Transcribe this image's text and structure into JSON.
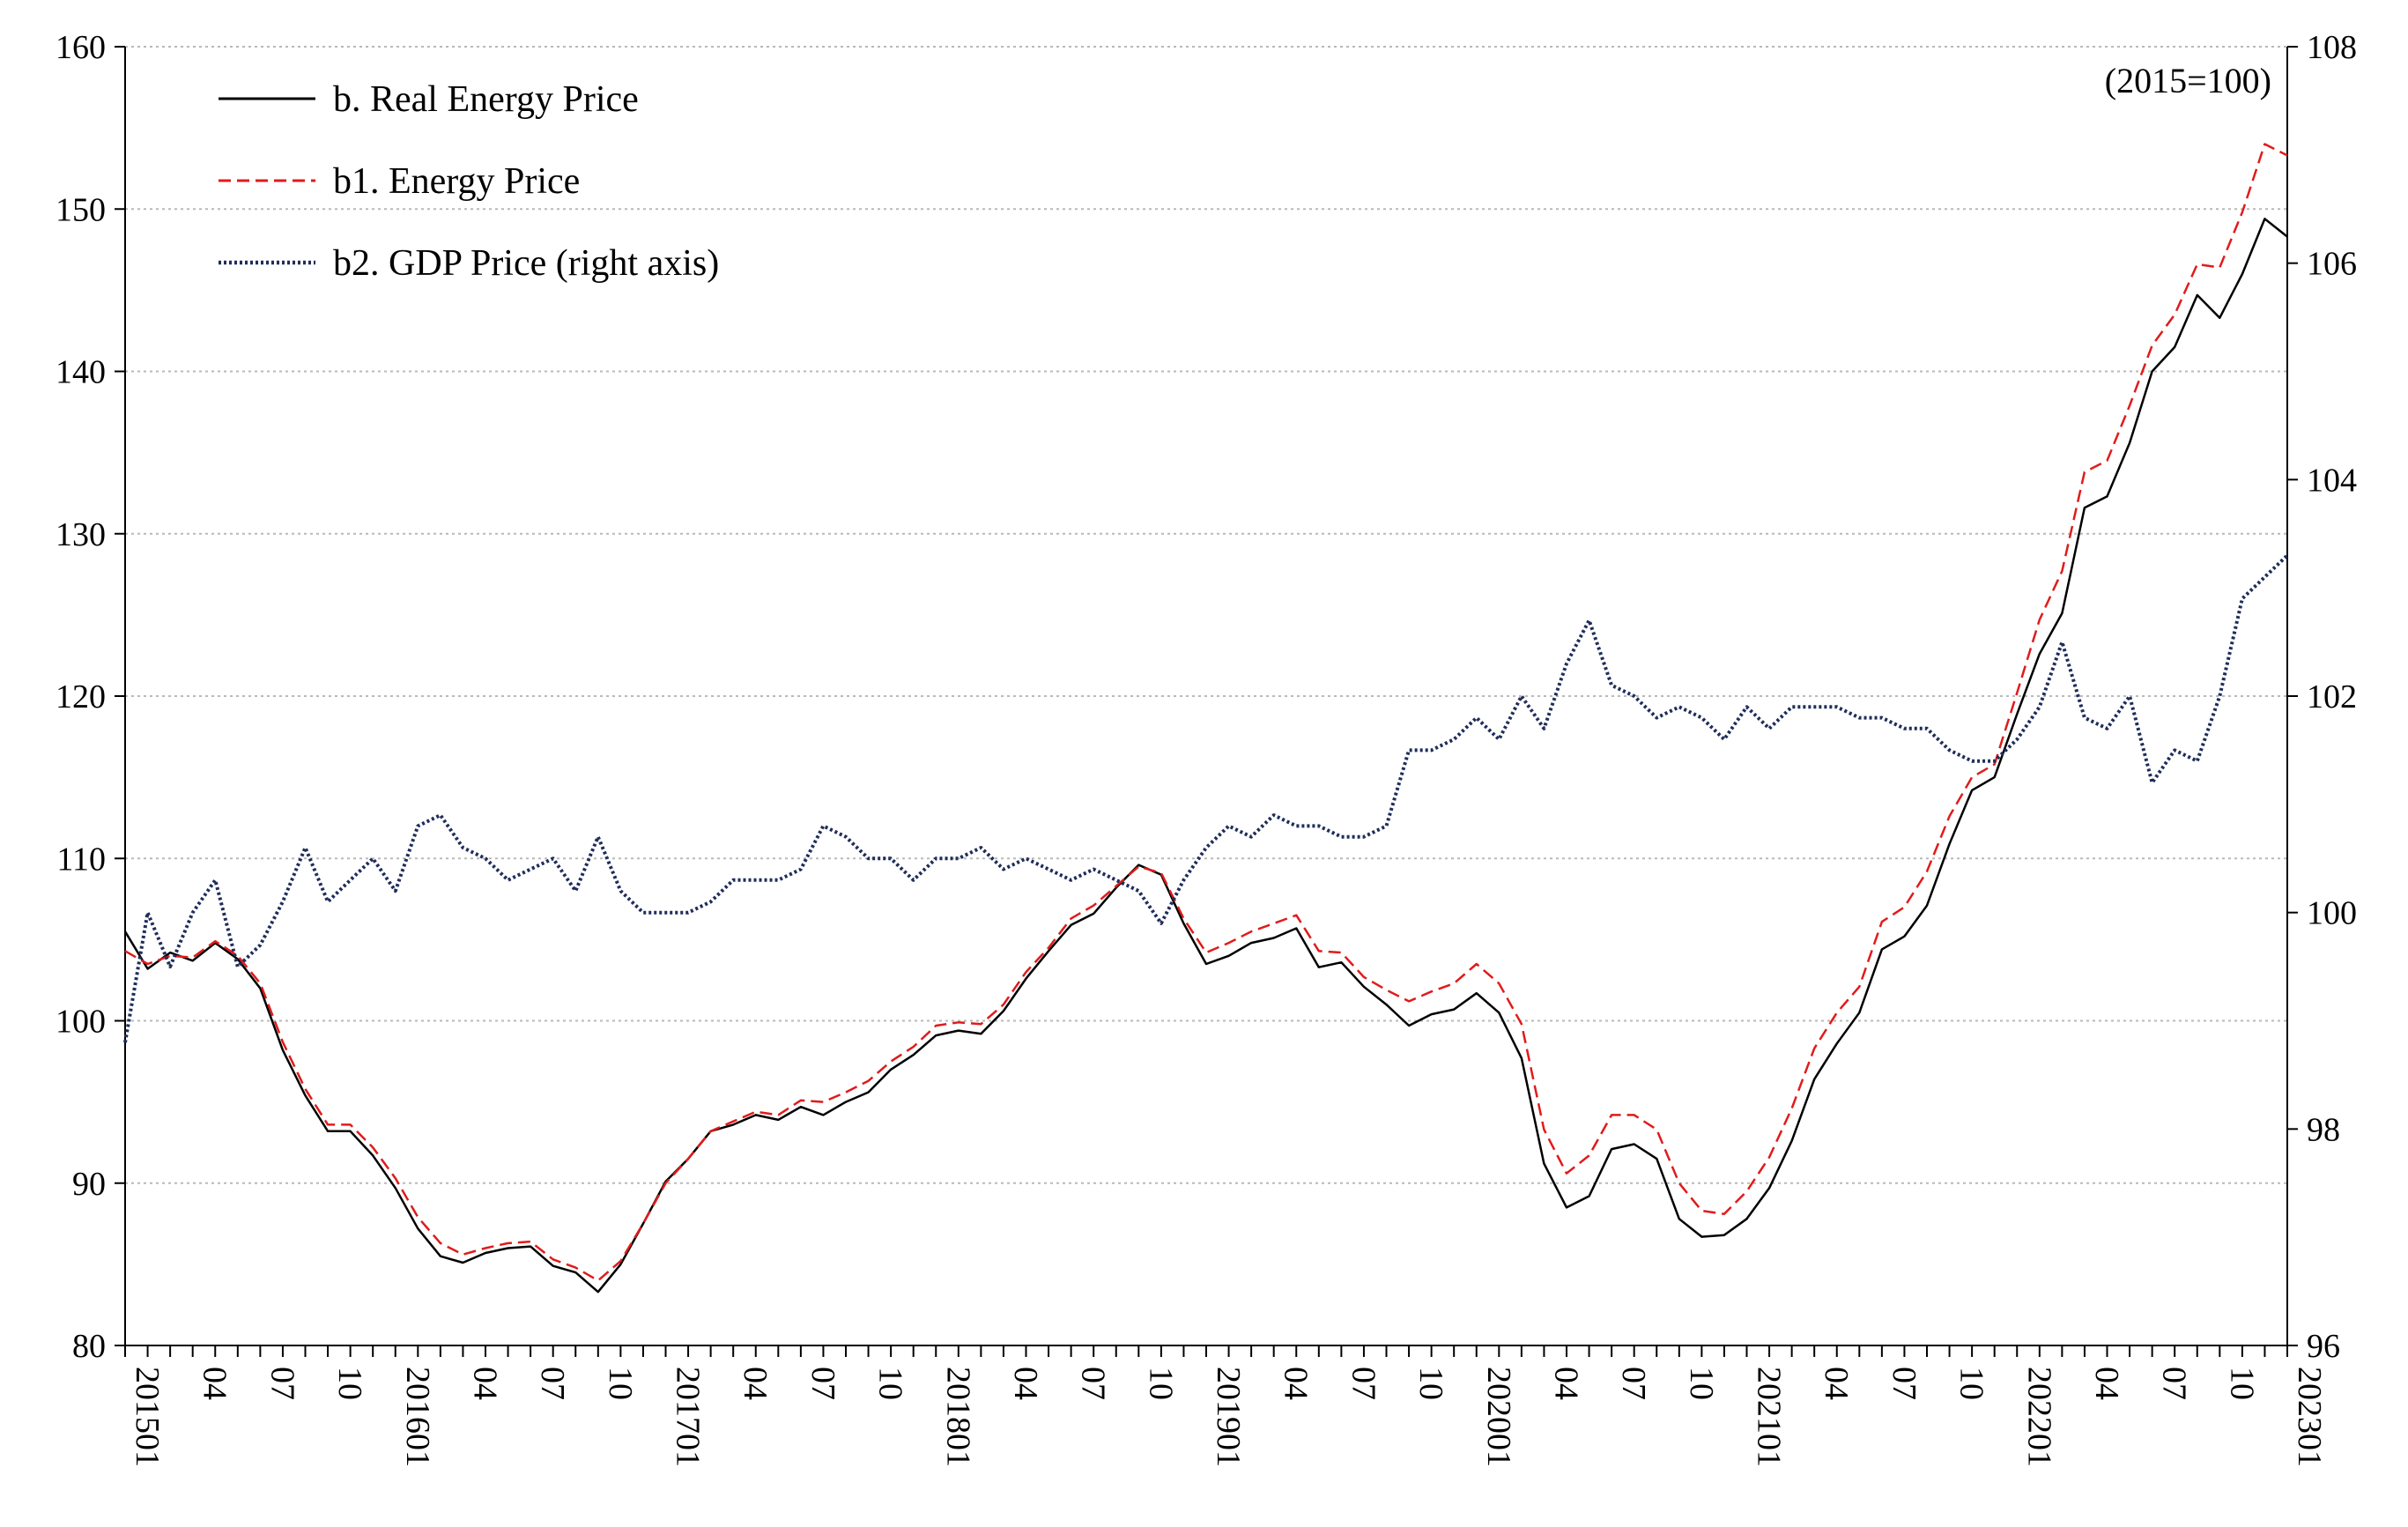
{
  "chart_data": {
    "type": "line",
    "title": "",
    "note": "(2015=100)",
    "xlabel": "",
    "ylabel_left": "",
    "ylabel_right": "",
    "y_left_lim": [
      80,
      160
    ],
    "y_left_ticks": [
      "80",
      "90",
      "100",
      "110",
      "120",
      "130",
      "140",
      "150",
      "160"
    ],
    "y_right_lim": [
      96,
      108
    ],
    "y_right_ticks": [
      "96",
      "98",
      "100",
      "102",
      "104",
      "106",
      "108"
    ],
    "x_tick_labels": [
      "201501",
      "04",
      "07",
      "10",
      "201601",
      "04",
      "07",
      "10",
      "201701",
      "04",
      "07",
      "10",
      "201801",
      "04",
      "07",
      "10",
      "201901",
      "04",
      "07",
      "10",
      "202001",
      "04",
      "07",
      "10",
      "202101",
      "04",
      "07",
      "10",
      "202201",
      "04",
      "07",
      "10",
      "202301"
    ],
    "x_count": 97,
    "grid": true,
    "legend_position": "top-left",
    "series": [
      {
        "name": "b. Real Energy Price",
        "axis": "left",
        "color": "#000000",
        "style": "solid",
        "values": [
          105.5,
          103.2,
          104.2,
          103.7,
          104.8,
          103.8,
          102.0,
          98.2,
          95.4,
          93.2,
          93.2,
          91.7,
          89.7,
          87.2,
          85.5,
          85.1,
          85.7,
          86.0,
          86.1,
          84.9,
          84.5,
          83.3,
          85.0,
          87.5,
          90.1,
          91.5,
          93.2,
          93.6,
          94.2,
          93.9,
          94.7,
          94.2,
          95.0,
          95.6,
          97.0,
          97.9,
          99.1,
          99.4,
          99.2,
          100.6,
          102.6,
          104.3,
          105.9,
          106.6,
          108.2,
          109.6,
          109.0,
          106.0,
          103.5,
          104.0,
          104.8,
          105.1,
          105.7,
          103.3,
          103.6,
          102.1,
          101.0,
          99.7,
          100.4,
          100.7,
          101.7,
          100.5,
          97.7,
          91.2,
          88.5,
          89.2,
          92.1,
          92.4,
          91.5,
          87.8,
          86.7,
          86.8,
          87.8,
          89.7,
          92.6,
          96.4,
          98.6,
          100.5,
          104.4,
          105.2,
          107.1,
          110.9,
          114.2,
          115.0,
          118.9,
          122.6,
          125.1,
          131.6,
          132.3,
          135.6,
          140.0,
          141.5,
          144.7,
          143.3,
          146.0,
          149.4,
          148.3
        ]
      },
      {
        "name": "b1. Energy Price",
        "axis": "left",
        "color": "#e01b1b",
        "style": "dashed",
        "values": [
          104.3,
          103.5,
          104.0,
          103.9,
          104.9,
          104.0,
          102.3,
          98.7,
          95.8,
          93.6,
          93.6,
          92.2,
          90.3,
          87.9,
          86.3,
          85.6,
          86.0,
          86.3,
          86.4,
          85.3,
          84.8,
          84.0,
          85.2,
          87.5,
          90.0,
          91.5,
          93.2,
          93.8,
          94.4,
          94.2,
          95.1,
          95.0,
          95.6,
          96.3,
          97.5,
          98.4,
          99.7,
          99.9,
          99.8,
          101.0,
          103.0,
          104.5,
          106.3,
          107.1,
          108.3,
          109.5,
          109.1,
          106.3,
          104.2,
          104.8,
          105.5,
          106.0,
          106.5,
          104.3,
          104.2,
          102.7,
          101.9,
          101.2,
          101.8,
          102.3,
          103.5,
          102.3,
          99.8,
          93.3,
          90.6,
          91.7,
          94.2,
          94.2,
          93.3,
          90.0,
          88.3,
          88.1,
          89.5,
          91.6,
          94.6,
          98.3,
          100.5,
          102.1,
          106.1,
          107.0,
          109.2,
          112.6,
          115.0,
          115.8,
          120.2,
          124.7,
          127.7,
          133.8,
          134.5,
          137.9,
          141.6,
          143.5,
          146.6,
          146.4,
          149.8,
          154.0,
          153.3
        ]
      },
      {
        "name": "b2. GDP Price (right axis)",
        "axis": "right",
        "color": "#1f2d5a",
        "style": "dotted",
        "values": [
          98.8,
          100.0,
          99.5,
          100.0,
          100.3,
          99.5,
          99.7,
          100.1,
          100.6,
          100.1,
          100.3,
          100.5,
          100.2,
          100.8,
          100.9,
          100.6,
          100.5,
          100.3,
          100.4,
          100.5,
          100.2,
          100.7,
          100.2,
          100.0,
          100.0,
          100.0,
          100.1,
          100.3,
          100.3,
          100.3,
          100.4,
          100.8,
          100.7,
          100.5,
          100.5,
          100.3,
          100.5,
          100.5,
          100.6,
          100.4,
          100.5,
          100.4,
          100.3,
          100.4,
          100.3,
          100.2,
          99.9,
          100.3,
          100.6,
          100.8,
          100.7,
          100.9,
          100.8,
          100.8,
          100.7,
          100.7,
          100.8,
          101.5,
          101.5,
          101.6,
          101.8,
          101.6,
          102.0,
          101.7,
          102.3,
          102.7,
          102.1,
          102.0,
          101.8,
          101.9,
          101.8,
          101.6,
          101.9,
          101.7,
          101.9,
          101.9,
          101.9,
          101.8,
          101.8,
          101.7,
          101.7,
          101.5,
          101.4,
          101.4,
          101.6,
          101.9,
          102.5,
          101.8,
          101.7,
          102.0,
          101.2,
          101.5,
          101.4,
          102.0,
          102.9,
          103.1,
          103.3
        ]
      }
    ]
  }
}
